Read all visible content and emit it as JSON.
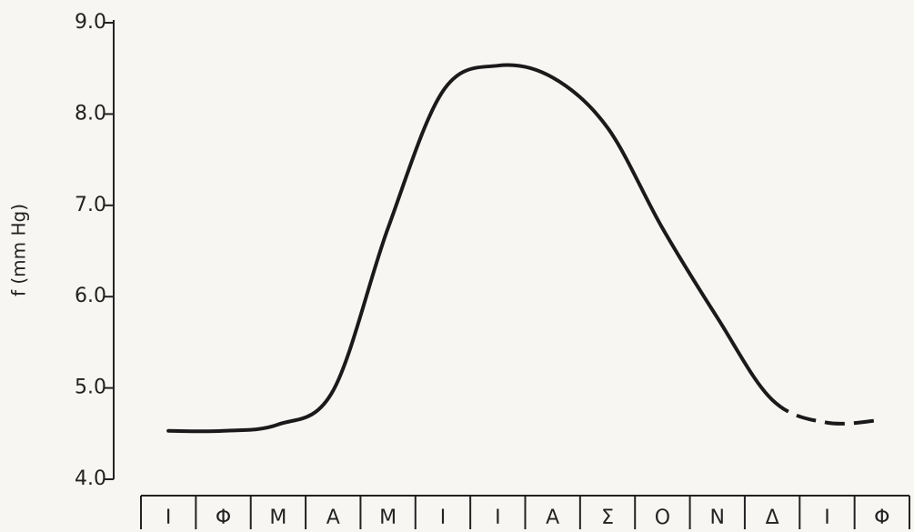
{
  "chart_data": {
    "type": "line",
    "y_label": "f (mm Hg)",
    "categories": [
      "Ι",
      "Φ",
      "Μ",
      "Α",
      "Μ",
      "Ι",
      "Ι",
      "Α",
      "Σ",
      "Ο",
      "Ν",
      "Δ",
      "Ι",
      "Φ"
    ],
    "values": [
      4.53,
      4.53,
      4.6,
      4.97,
      6.75,
      8.25,
      8.53,
      8.4,
      7.85,
      6.75,
      5.77,
      4.87,
      4.62,
      4.65
    ],
    "color": "#1a1a1a",
    "dashed_from_index": 11,
    "ylim": [
      4,
      9
    ],
    "yticks": [
      {
        "value": 4,
        "label": "4.0"
      },
      {
        "value": 5,
        "label": "5.0"
      },
      {
        "value": 6,
        "label": "6.0"
      },
      {
        "value": 7,
        "label": "7.0"
      },
      {
        "value": 8,
        "label": "8.0"
      },
      {
        "value": 9,
        "label": "9.0"
      }
    ],
    "grid": false
  }
}
